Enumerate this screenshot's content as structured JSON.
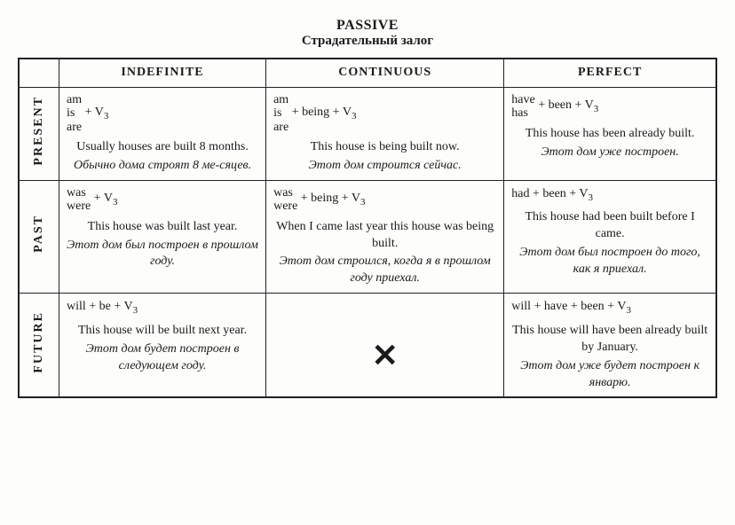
{
  "header": {
    "title": "PASSIVE",
    "subtitle": "Страдательный залог"
  },
  "columns": [
    "INDEFINITE",
    "CONTINUOUS",
    "PERFECT"
  ],
  "rows": {
    "present": {
      "label": "PRESENT",
      "cells": {
        "indefinite": {
          "aux": [
            "am",
            "is",
            "are"
          ],
          "formula_tail": " + V",
          "sub": "3",
          "example_en": "Usually houses are built 8 months.",
          "example_ru": "Обычно дома строят 8 ме-сяцев."
        },
        "continuous": {
          "aux": [
            "am",
            "is",
            "are"
          ],
          "formula_tail": " + being + V",
          "sub": "3",
          "example_en": "This house is being built now.",
          "example_ru": "Этот дом строится сейчас."
        },
        "perfect": {
          "aux": [
            "have",
            "has"
          ],
          "formula_tail": " + been + V",
          "sub": "3",
          "example_en": "This house has been already built.",
          "example_ru": "Этот дом уже построен."
        }
      }
    },
    "past": {
      "label": "PAST",
      "cells": {
        "indefinite": {
          "aux": [
            "was",
            "were"
          ],
          "formula_tail": " + V",
          "sub": "3",
          "example_en": "This house was built last year.",
          "example_ru": "Этот дом был построен в прошлом году."
        },
        "continuous": {
          "aux": [
            "was",
            "were"
          ],
          "formula_tail": " + being + V",
          "sub": "3",
          "example_en": "When I came last year this house was being built.",
          "example_ru": "Этот дом строился, когда я в прошлом году приехал."
        },
        "perfect": {
          "formula_line": "had + been + V",
          "sub": "3",
          "example_en": "This house had been built before I came.",
          "example_ru": "Этот дом был построен до того, как я приехал."
        }
      }
    },
    "future": {
      "label": "FUTURE",
      "cells": {
        "indefinite": {
          "formula_line": "will + be + V",
          "sub": "3",
          "example_en": "This house will be built next year.",
          "example_ru": "Этот дом будет построен в следующем году."
        },
        "continuous": {
          "empty": "✕"
        },
        "perfect": {
          "formula_line": "will + have + been + V",
          "sub": "3",
          "example_en": "This house will have been already built by January.",
          "example_ru": "Этот дом уже будет построен к январю."
        }
      }
    }
  }
}
